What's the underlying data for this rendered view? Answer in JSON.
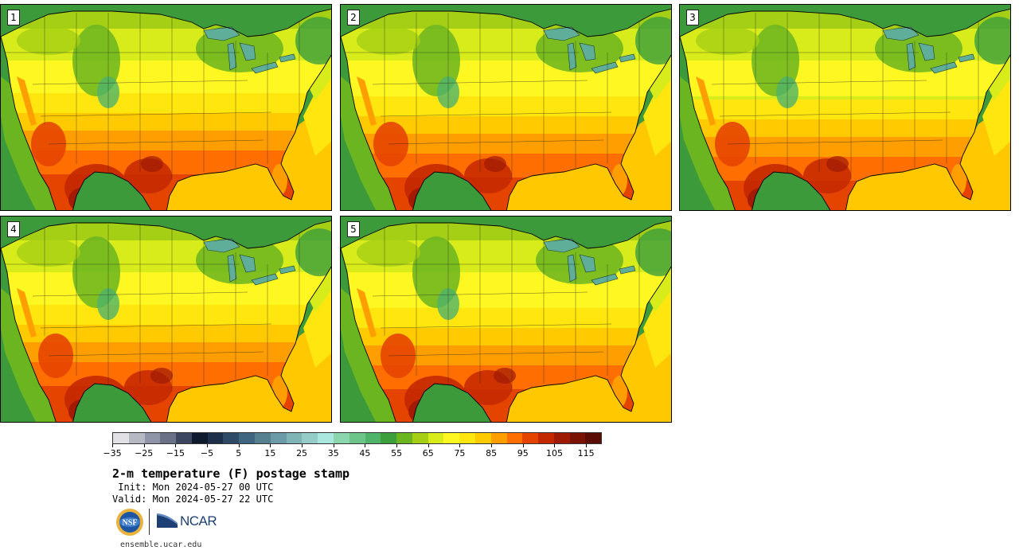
{
  "panels": [
    {
      "label": "1",
      "variant": 0
    },
    {
      "label": "2",
      "variant": 1
    },
    {
      "label": "3",
      "variant": 2
    },
    {
      "label": "4",
      "variant": 3
    },
    {
      "label": "5",
      "variant": 4
    }
  ],
  "colorbar": {
    "min": -35,
    "max": 120,
    "step": 5,
    "colors": [
      "#e1e1e6",
      "#b6b9c3",
      "#8f95a6",
      "#6a7186",
      "#3c4660",
      "#0f1a2e",
      "#1e2f4a",
      "#2e4a66",
      "#3f6580",
      "#56808f",
      "#6b9ba6",
      "#80b5b6",
      "#96ccc8",
      "#a9e7df",
      "#8cd6ae",
      "#6dc58a",
      "#4fb36a",
      "#3c9f3c",
      "#6bb521",
      "#a5cf14",
      "#d7ec1a",
      "#fff722",
      "#ffe60e",
      "#ffca00",
      "#ff9e00",
      "#ff6e00",
      "#e54400",
      "#c42800",
      "#9e1a05",
      "#7a1206",
      "#5a0c05"
    ],
    "tick_labels": [
      "−35",
      "−25",
      "−15",
      "−5",
      "5",
      "15",
      "25",
      "35",
      "45",
      "55",
      "65",
      "75",
      "85",
      "95",
      "105",
      "115"
    ],
    "tick_values": [
      -35,
      -25,
      -15,
      -5,
      5,
      15,
      25,
      35,
      45,
      55,
      65,
      75,
      85,
      95,
      105,
      115
    ]
  },
  "title": "2-m temperature (F) postage stamp",
  "init": " Init: Mon 2024-05-27 00 UTC",
  "valid": "Valid: Mon 2024-05-27 22 UTC",
  "logos": {
    "nsf": "NSF",
    "ncar": "NCAR"
  },
  "website": "ensemble.ucar.edu"
}
